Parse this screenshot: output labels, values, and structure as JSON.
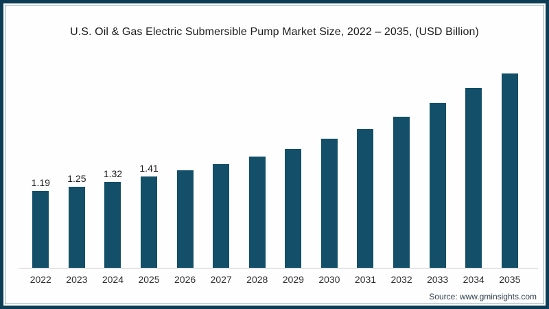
{
  "title": "U.S. Oil & Gas Electric Submersible Pump Market Size, 2022 – 2035, (USD Billion)",
  "source": "Source: www.gminsights.com",
  "colors": {
    "bar": "#134f68",
    "frame_border": "#0d3c55",
    "axis_line": "#c9c9c9",
    "title_text": "#1b1b1b",
    "tick_text": "#2e2e2e"
  },
  "chart_data": {
    "type": "bar",
    "title": "U.S. Oil & Gas Electric Submersible Pump Market Size, 2022 – 2035, (USD Billion)",
    "categories": [
      "2022",
      "2023",
      "2024",
      "2025",
      "2026",
      "2027",
      "2028",
      "2029",
      "2030",
      "2031",
      "2032",
      "2033",
      "2034",
      "2035"
    ],
    "values": [
      1.19,
      1.25,
      1.32,
      1.41,
      1.5,
      1.6,
      1.71,
      1.83,
      1.99,
      2.14,
      2.33,
      2.54,
      2.77,
      3.0
    ],
    "data_labels": [
      "1.19",
      "1.25",
      "1.32",
      "1.41",
      "",
      "",
      "",
      "",
      "",
      "",
      "",
      "",
      "",
      ""
    ],
    "xlabel": "",
    "ylabel": "",
    "ylim": [
      0,
      3.1
    ],
    "grid": false,
    "legend": "none",
    "bar_color": "#134f68"
  }
}
